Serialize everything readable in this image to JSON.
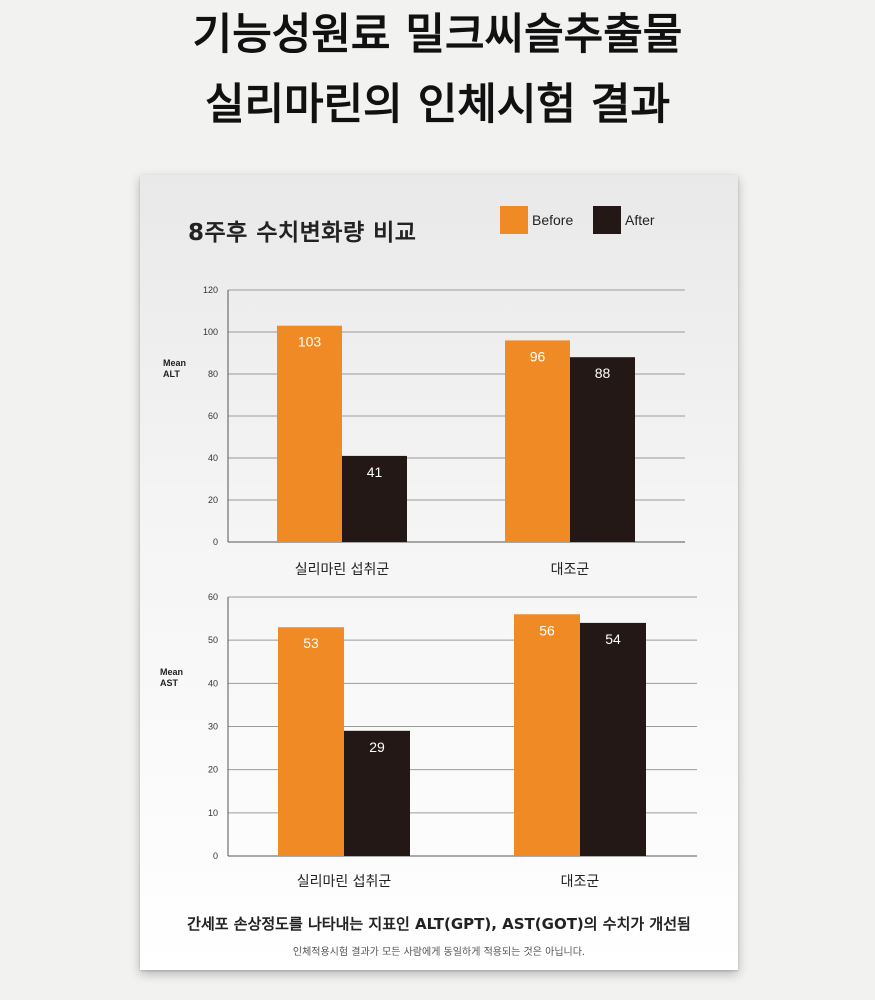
{
  "page": {
    "title_line1": "기능성원료 밀크씨슬추출물",
    "title_line2": "실리마린의 인체시험 결과"
  },
  "card": {
    "title": "8주후 수치변화량 비교",
    "footnote": "간세포 손상정도를 나타내는 지표인 ALT(GPT), AST(GOT)의 수치가 개선됨",
    "disclaimer": "인체적용시험 결과가 모든 사람에게 동일하게 적용되는 것은 아닙니다."
  },
  "legend": [
    {
      "label": "Before",
      "color": "#f08a24"
    },
    {
      "label": "After",
      "color": "#231815"
    }
  ],
  "chart_data": [
    {
      "type": "bar",
      "ylabel_line1": "Mean",
      "ylabel_line2": "ALT",
      "categories": [
        "실리마린 섭취군",
        "대조군"
      ],
      "series": [
        {
          "name": "Before",
          "values": [
            103,
            96
          ],
          "color": "#f08a24"
        },
        {
          "name": "After",
          "values": [
            41,
            88
          ],
          "color": "#231815"
        }
      ],
      "ylim": [
        0,
        120
      ],
      "yticks": [
        0,
        20,
        40,
        60,
        80,
        100,
        120
      ],
      "grid": true,
      "legend_position": "top-right"
    },
    {
      "type": "bar",
      "ylabel_line1": "Mean",
      "ylabel_line2": "AST",
      "categories": [
        "실리마린 섭취군",
        "대조군"
      ],
      "series": [
        {
          "name": "Before",
          "values": [
            53,
            56
          ],
          "color": "#f08a24"
        },
        {
          "name": "After",
          "values": [
            29,
            54
          ],
          "color": "#231815"
        }
      ],
      "ylim": [
        0,
        60
      ],
      "yticks": [
        0,
        10,
        20,
        30,
        40,
        50,
        60
      ],
      "grid": true,
      "legend_position": "top-right"
    }
  ]
}
